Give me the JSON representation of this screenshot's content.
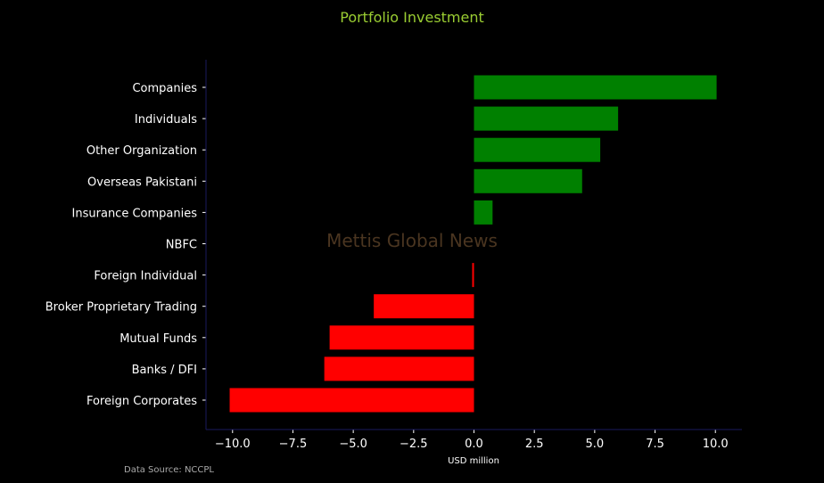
{
  "chart_data": {
    "type": "bar",
    "orientation": "horizontal",
    "title": "Portfolio Investment",
    "xlabel": "USD million",
    "ylabel": "",
    "categories": [
      "Companies",
      "Individuals",
      "Other Organization",
      "Overseas Pakistani",
      "Insurance Companies",
      "NBFC",
      "Foreign Individual",
      "Broker Proprietary Trading",
      "Mutual Funds",
      "Banks / DFI",
      "Foreign Corporates "
    ],
    "values": [
      10.05,
      5.97,
      5.23,
      4.48,
      0.77,
      0.0,
      -0.06,
      -4.15,
      -5.98,
      -6.2,
      -10.12
    ],
    "xlim": [
      -11.1,
      11.1
    ],
    "xticks": [
      -10,
      -7.5,
      -5,
      -2.5,
      0,
      2.5,
      5,
      7.5,
      10
    ],
    "xtick_labels": [
      "−10.0",
      "−7.5",
      "−5.0",
      "−2.5",
      "0.0",
      "2.5",
      "5.0",
      "7.5",
      "10.0"
    ],
    "grid": false,
    "colors": {
      "positive": "#008000",
      "negative": "#ff0000",
      "background": "#000000",
      "title": "#9acd32",
      "spine": "#1a1a5e",
      "text": "#ffffff",
      "watermark": "#4a3520",
      "source": "#aaaaaa"
    }
  },
  "watermark": "Mettis Global News",
  "source": "Data Source: NCCPL"
}
